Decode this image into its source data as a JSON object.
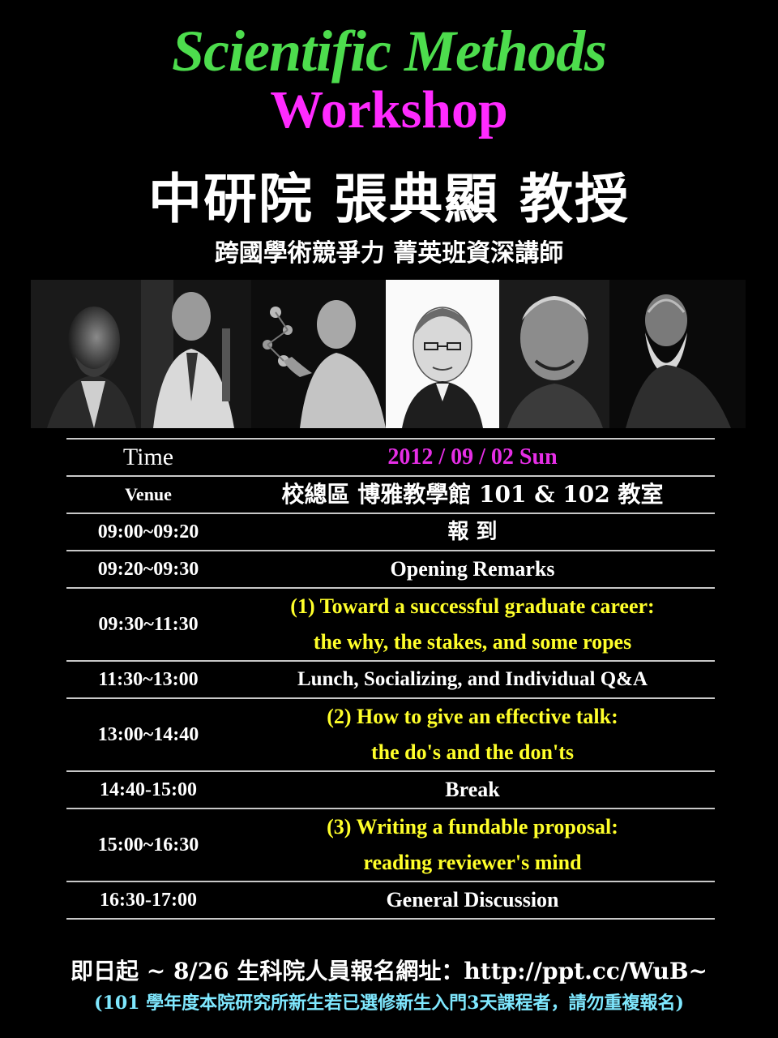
{
  "header": {
    "title_line1": "Scientific Methods",
    "title_line2": "Workshop",
    "speaker": "中研院 張典顯 教授",
    "subtitle": "跨國學術競爭力 菁英班資深講師"
  },
  "portraits": [
    {
      "name": "portrait-1",
      "style": "dark"
    },
    {
      "name": "portrait-2",
      "style": "dark"
    },
    {
      "name": "portrait-3",
      "style": "dark"
    },
    {
      "name": "portrait-4",
      "style": "engraving"
    },
    {
      "name": "portrait-5",
      "style": "dark"
    },
    {
      "name": "portrait-6",
      "style": "dark"
    }
  ],
  "schedule": {
    "time_label": "Time",
    "time_value": "2012 / 09 / 02  Sun",
    "venue_label": "Venue",
    "venue_value": "校總區 博雅教學館  101 & 102 教室",
    "rows": [
      {
        "time": "09:00~09:20",
        "lines": [
          "報 到"
        ],
        "color": "white"
      },
      {
        "time": "09:20~09:30",
        "lines": [
          "Opening Remarks"
        ],
        "color": "white"
      },
      {
        "time": "09:30~11:30",
        "lines": [
          "(1) Toward a successful graduate career:",
          "the why, the stakes, and some ropes"
        ],
        "color": "yellow"
      },
      {
        "time": "11:30~13:00",
        "lines": [
          "Lunch, Socializing, and Individual Q&A"
        ],
        "color": "white"
      },
      {
        "time": "13:00~14:40",
        "lines": [
          "(2) How to give an effective talk:",
          "the do's and the don'ts"
        ],
        "color": "yellow"
      },
      {
        "time": "14:40-15:00",
        "lines": [
          "Break"
        ],
        "color": "white"
      },
      {
        "time": "15:00~16:30",
        "lines": [
          "(3) Writing a fundable proposal:",
          "reading reviewer's mind"
        ],
        "color": "yellow"
      },
      {
        "time": "16:30-17:00",
        "lines": [
          "General Discussion"
        ],
        "color": "white"
      }
    ]
  },
  "footer": {
    "registration": "即日起 ~ 8/26  生科院人員報名網址：http://ppt.cc/WuB~",
    "note": "(101 學年度本院研究所新生若已選修新生入門3天課程者，請勿重複報名)"
  },
  "colors": {
    "title_green": "#4ddc4d",
    "title_magenta": "#ff2bff",
    "talk_yellow": "#ffff2a",
    "date_magenta": "#e62ee6",
    "note_cyan": "#7fe8ff"
  }
}
